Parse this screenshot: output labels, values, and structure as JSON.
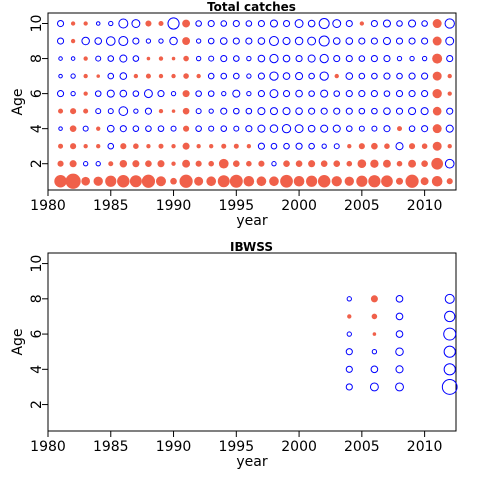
{
  "chart_data": [
    {
      "type": "scatter",
      "title": "Total catches",
      "xlabel": "year",
      "ylabel": "Age",
      "xlim": [
        1980,
        2012.5
      ],
      "ylim": [
        0.5,
        10.6
      ],
      "xticks": [
        "1980",
        "1985",
        "1990",
        "1995",
        "2000",
        "2005",
        "2010"
      ],
      "yticks": [
        "2",
        "4",
        "6",
        "8",
        "10"
      ],
      "colors": {
        "positive": "#f0604a",
        "negative": "#0000ff"
      },
      "encoding": "circle area = |residual|; filled red = positive, open blue = negative",
      "years": [
        1981,
        1982,
        1983,
        1984,
        1985,
        1986,
        1987,
        1988,
        1989,
        1990,
        1991,
        1992,
        1993,
        1994,
        1995,
        1996,
        1997,
        1998,
        1999,
        2000,
        2001,
        2002,
        2003,
        2004,
        2005,
        2006,
        2007,
        2008,
        2009,
        2010,
        2011,
        2012
      ],
      "ages": [
        1,
        2,
        3,
        4,
        5,
        6,
        7,
        8,
        9,
        10
      ],
      "residuals": [
        [
          2.5,
          0.6,
          0.4,
          -0.2,
          0.4,
          -0.6,
          -0.2,
          -0.2,
          -0.6,
          -0.6
        ],
        [
          3.7,
          0.8,
          0.6,
          0.7,
          0.6,
          -0.3,
          -0.3,
          -0.2,
          0.3,
          0.3
        ],
        [
          1.2,
          -0.3,
          0.3,
          -0.4,
          0.4,
          0.3,
          0.3,
          0.3,
          -0.9,
          0.3
        ],
        [
          1.4,
          -0.3,
          0.3,
          0.3,
          -0.4,
          -0.5,
          0.2,
          -0.4,
          -0.7,
          -0.2
        ],
        [
          2.0,
          0.4,
          -0.5,
          -0.7,
          -0.4,
          -0.8,
          -0.5,
          -0.5,
          -1.2,
          -0.3
        ],
        [
          2.5,
          0.9,
          0.6,
          -0.6,
          -1.2,
          -0.7,
          -0.7,
          -0.8,
          -1.3,
          -1.3
        ],
        [
          2.3,
          0.8,
          0.5,
          -0.5,
          -0.3,
          -0.5,
          0.3,
          -0.5,
          -0.6,
          -1.0
        ],
        [
          2.8,
          0.7,
          0.3,
          -0.5,
          -0.6,
          -1.0,
          0.4,
          0.2,
          -0.3,
          0.6
        ],
        [
          1.6,
          0.8,
          0.4,
          -0.5,
          0.3,
          -0.6,
          0.3,
          0.3,
          -0.3,
          0.4
        ],
        [
          0.7,
          0.3,
          0.3,
          -0.4,
          0.2,
          -0.3,
          0.3,
          0.2,
          -0.9,
          -2.0
        ],
        [
          2.8,
          1.0,
          0.8,
          0.6,
          0.7,
          0.8,
          0.5,
          0.5,
          1.0,
          1.0
        ],
        [
          1.3,
          0.6,
          0.3,
          -0.5,
          -0.4,
          -0.5,
          0.3,
          -0.3,
          -0.3,
          -0.5
        ],
        [
          1.5,
          0.5,
          0.3,
          -0.4,
          -0.3,
          -0.5,
          -0.5,
          -0.4,
          -0.5,
          -0.6
        ],
        [
          2.3,
          1.5,
          0.4,
          -0.5,
          -0.6,
          -0.3,
          -0.5,
          -0.6,
          -0.7,
          -0.5
        ],
        [
          2.7,
          0.7,
          0.4,
          -0.4,
          -0.5,
          -0.8,
          -0.5,
          -0.5,
          -0.6,
          -0.6
        ],
        [
          1.8,
          0.5,
          0.3,
          -0.6,
          -0.5,
          -0.3,
          -0.3,
          -0.3,
          -0.6,
          -0.5
        ],
        [
          1.5,
          0.6,
          -0.6,
          -0.8,
          -0.8,
          -0.6,
          -0.6,
          -0.7,
          -0.7,
          -0.6
        ],
        [
          1.5,
          -0.3,
          -0.5,
          -0.9,
          -0.8,
          -1.0,
          -1.1,
          -1.1,
          -1.3,
          -0.8
        ],
        [
          2.6,
          0.7,
          -0.5,
          -1.1,
          -0.8,
          -0.6,
          -0.7,
          -0.7,
          -0.8,
          -0.6
        ],
        [
          1.8,
          0.7,
          -0.6,
          -1.0,
          -0.7,
          -0.7,
          -0.8,
          -0.6,
          -0.9,
          -1.0
        ],
        [
          2.0,
          0.8,
          -0.5,
          -0.7,
          -0.6,
          -0.5,
          -0.5,
          -0.8,
          -1.0,
          -0.7
        ],
        [
          2.5,
          0.7,
          -0.3,
          -0.8,
          -0.6,
          -0.8,
          -1.1,
          -1.1,
          -1.6,
          -1.6
        ],
        [
          1.7,
          0.7,
          -0.4,
          -0.8,
          -0.6,
          -0.5,
          0.3,
          -0.6,
          -0.7,
          -1.0
        ],
        [
          1.4,
          0.5,
          0.3,
          -0.5,
          -0.6,
          -0.6,
          -0.7,
          -0.6,
          -0.7,
          -0.6
        ],
        [
          2.0,
          1.2,
          0.6,
          -0.4,
          -0.5,
          -0.6,
          -0.5,
          -0.5,
          -0.6,
          0.3
        ],
        [
          2.4,
          1.1,
          0.7,
          -0.4,
          -0.5,
          -0.6,
          -0.5,
          -0.6,
          -0.6,
          -0.6
        ],
        [
          2.2,
          1.0,
          0.5,
          -0.6,
          -0.7,
          -0.5,
          -0.6,
          -0.6,
          -0.8,
          -0.8
        ],
        [
          0.8,
          0.5,
          -0.8,
          0.4,
          -0.6,
          -0.6,
          -0.5,
          -0.3,
          -0.6,
          -0.5
        ],
        [
          2.8,
          1.0,
          0.6,
          -0.5,
          -0.8,
          -0.6,
          -0.6,
          -0.3,
          -0.6,
          -0.8
        ],
        [
          1.0,
          0.7,
          0.5,
          -0.6,
          -0.8,
          -0.6,
          -0.6,
          -0.3,
          -0.6,
          -0.5
        ],
        [
          1.8,
          2.2,
          1.3,
          1.3,
          1.2,
          1.4,
          1.3,
          1.6,
          1.3,
          1.3
        ],
        [
          0.6,
          -1.2,
          0.3,
          -0.8,
          -0.6,
          0.3,
          0.3,
          -0.6,
          -1.0,
          -1.4
        ]
      ]
    },
    {
      "type": "scatter",
      "title": "IBWSS",
      "xlabel": "year",
      "ylabel": "Age",
      "xlim": [
        1980,
        2012.5
      ],
      "ylim": [
        0.5,
        10.6
      ],
      "xticks": [
        "1980",
        "1985",
        "1990",
        "1995",
        "2000",
        "2005",
        "2010"
      ],
      "yticks": [
        "2",
        "4",
        "6",
        "8",
        "10"
      ],
      "colors": {
        "positive": "#f0604a",
        "negative": "#0000ff"
      },
      "encoding": "circle area = |residual|; filled red = positive, open blue = negative",
      "years": [
        2004,
        2006,
        2008,
        2012
      ],
      "ages": [
        3,
        4,
        5,
        6,
        7,
        8
      ],
      "residuals": [
        [
          -0.6,
          -0.6,
          -0.6,
          -0.3,
          0.3,
          -0.3
        ],
        [
          -1.0,
          -0.7,
          -0.3,
          0.2,
          0.5,
          0.8
        ],
        [
          -1.0,
          -0.8,
          -0.9,
          -0.7,
          -0.7,
          -0.7
        ],
        [
          -3.5,
          -2.0,
          -2.0,
          -2.3,
          -1.7,
          -1.3
        ]
      ]
    }
  ]
}
